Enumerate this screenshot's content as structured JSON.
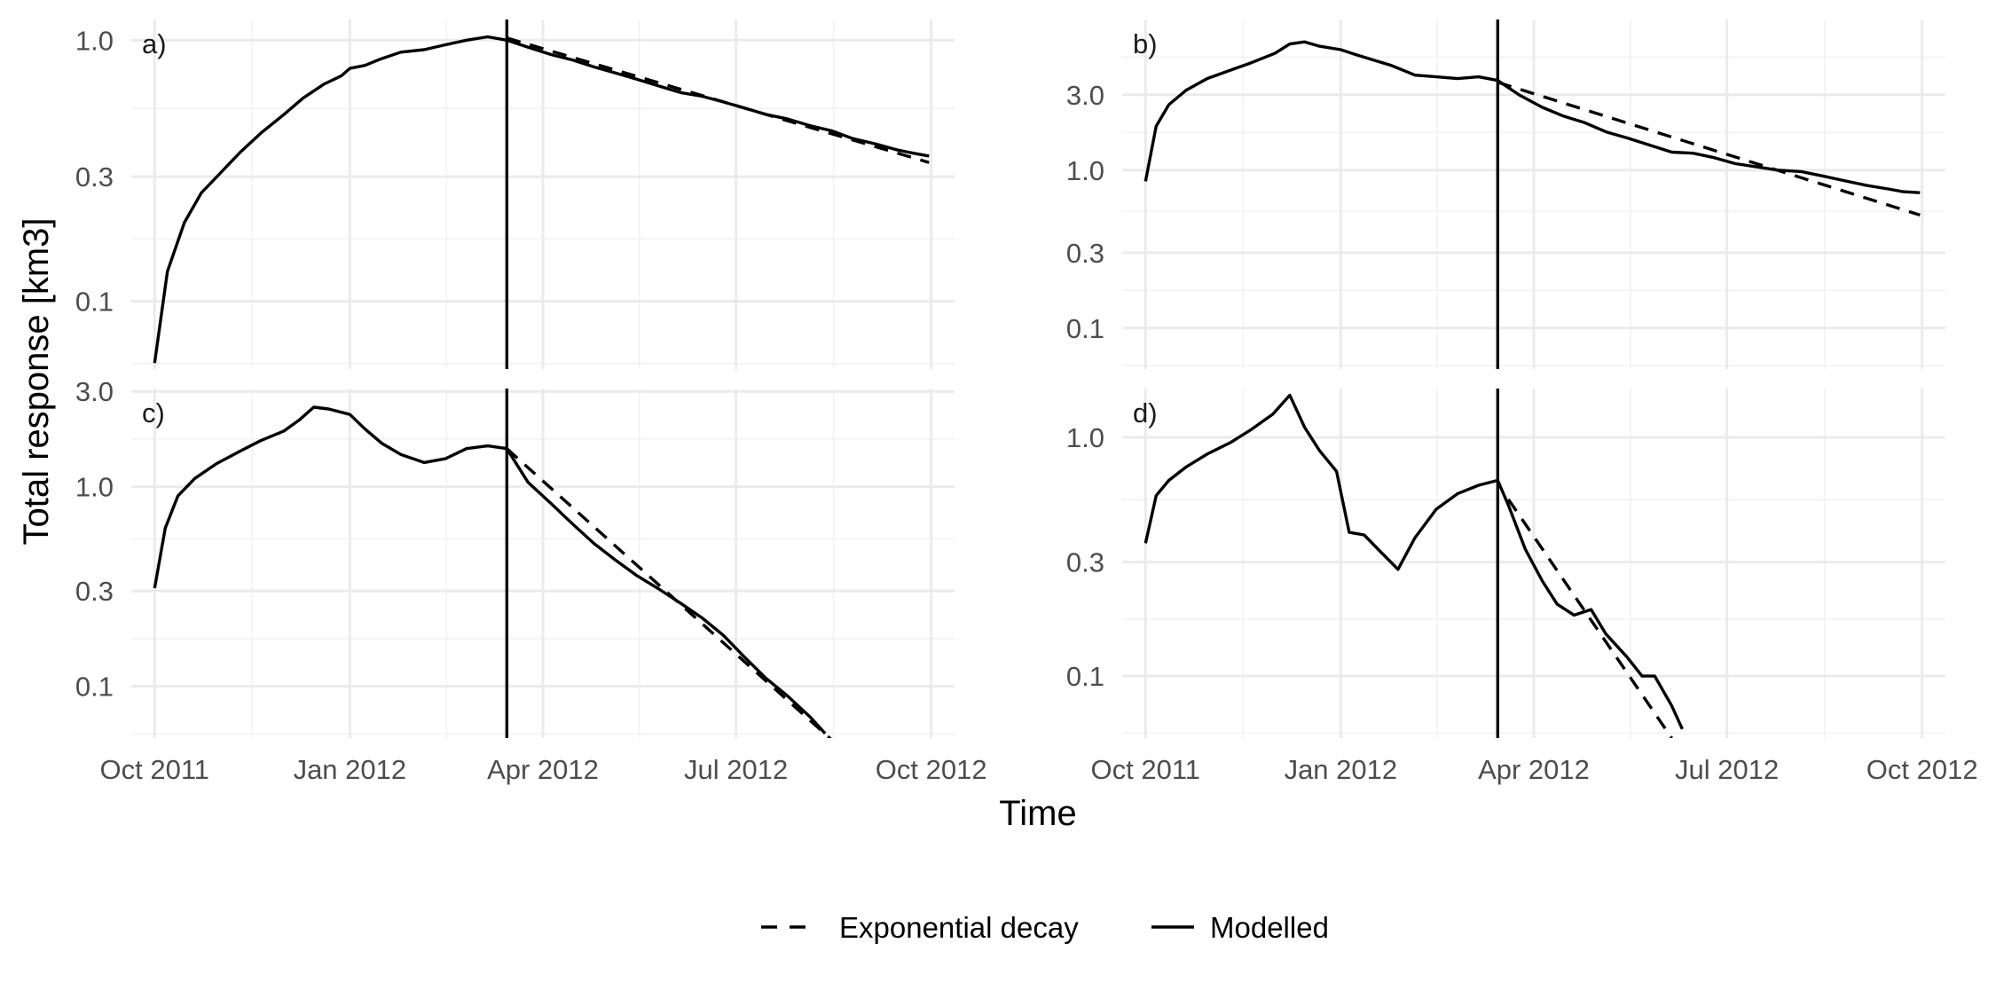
{
  "chart_data": {
    "type": "line",
    "xlabel": "Time",
    "ylabel": "Total response [km3]",
    "x_tick_labels": [
      "Oct 2011",
      "Jan 2012",
      "Apr 2012",
      "Jul 2012",
      "Oct 2012"
    ],
    "x_ticks": [
      "2011-10-01",
      "2012-01-01",
      "2012-04-01",
      "2012-07-01",
      "2012-10-01"
    ],
    "xlim": [
      "2011-09-20",
      "2012-10-12"
    ],
    "y_scale": "log",
    "grid": true,
    "legend_position": "bottom",
    "legend": [
      {
        "key": "exp",
        "label": "Exponential decay",
        "style": "dashed"
      },
      {
        "key": "mod",
        "label": "Modelled",
        "style": "solid"
      }
    ],
    "panels": [
      {
        "tag": "a)",
        "ylim": [
          0.055,
          1.2
        ],
        "y_ticks": [
          0.1,
          0.3,
          1.0
        ],
        "y_tick_labels": [
          "0.1",
          "0.3",
          "1.0"
        ],
        "vline": "2012-03-15",
        "series": {
          "mod": [
            [
              "2011-10-01",
              0.058
            ],
            [
              "2011-10-07",
              0.13
            ],
            [
              "2011-10-15",
              0.2
            ],
            [
              "2011-10-23",
              0.26
            ],
            [
              "2011-11-01",
              0.31
            ],
            [
              "2011-11-10",
              0.37
            ],
            [
              "2011-11-20",
              0.44
            ],
            [
              "2011-12-01",
              0.52
            ],
            [
              "2011-12-10",
              0.6
            ],
            [
              "2011-12-20",
              0.68
            ],
            [
              "2011-12-28",
              0.73
            ],
            [
              "2012-01-01",
              0.78
            ],
            [
              "2012-01-08",
              0.8
            ],
            [
              "2012-01-16",
              0.85
            ],
            [
              "2012-01-25",
              0.9
            ],
            [
              "2012-02-05",
              0.92
            ],
            [
              "2012-02-15",
              0.96
            ],
            [
              "2012-02-25",
              1.0
            ],
            [
              "2012-03-06",
              1.03
            ],
            [
              "2012-03-15",
              1.0
            ],
            [
              "2012-03-25",
              0.94
            ],
            [
              "2012-04-05",
              0.88
            ],
            [
              "2012-04-15",
              0.84
            ],
            [
              "2012-04-25",
              0.79
            ],
            [
              "2012-05-05",
              0.75
            ],
            [
              "2012-05-15",
              0.71
            ],
            [
              "2012-05-25",
              0.67
            ],
            [
              "2012-06-05",
              0.63
            ],
            [
              "2012-06-15",
              0.61
            ],
            [
              "2012-06-25",
              0.58
            ],
            [
              "2012-07-05",
              0.55
            ],
            [
              "2012-07-15",
              0.52
            ],
            [
              "2012-07-25",
              0.5
            ],
            [
              "2012-08-05",
              0.47
            ],
            [
              "2012-08-15",
              0.45
            ],
            [
              "2012-08-25",
              0.42
            ],
            [
              "2012-09-05",
              0.4
            ],
            [
              "2012-09-15",
              0.38
            ],
            [
              "2012-09-22",
              0.37
            ],
            [
              "2012-09-30",
              0.36
            ]
          ],
          "exp": [
            [
              "2012-03-15",
              1.02
            ],
            [
              "2012-09-30",
              0.34
            ]
          ]
        }
      },
      {
        "tag": "b)",
        "ylim": [
          0.055,
          9.0
        ],
        "y_ticks": [
          0.1,
          0.3,
          1.0,
          3.0
        ],
        "y_tick_labels": [
          "0.1",
          "0.3",
          "1.0",
          "3.0"
        ],
        "vline": "2012-03-15",
        "series": {
          "mod": [
            [
              "2011-10-01",
              0.85
            ],
            [
              "2011-10-06",
              1.9
            ],
            [
              "2011-10-12",
              2.6
            ],
            [
              "2011-10-20",
              3.2
            ],
            [
              "2011-10-30",
              3.8
            ],
            [
              "2011-11-10",
              4.3
            ],
            [
              "2011-11-20",
              4.8
            ],
            [
              "2011-12-01",
              5.5
            ],
            [
              "2011-12-08",
              6.3
            ],
            [
              "2011-12-15",
              6.5
            ],
            [
              "2011-12-22",
              6.1
            ],
            [
              "2012-01-01",
              5.8
            ],
            [
              "2012-01-08",
              5.4
            ],
            [
              "2012-01-16",
              5.0
            ],
            [
              "2012-01-25",
              4.6
            ],
            [
              "2012-02-05",
              4.0
            ],
            [
              "2012-02-15",
              3.9
            ],
            [
              "2012-02-25",
              3.8
            ],
            [
              "2012-03-06",
              3.9
            ],
            [
              "2012-03-15",
              3.7
            ],
            [
              "2012-03-25",
              3.0
            ],
            [
              "2012-04-05",
              2.5
            ],
            [
              "2012-04-15",
              2.2
            ],
            [
              "2012-04-25",
              2.0
            ],
            [
              "2012-05-05",
              1.75
            ],
            [
              "2012-05-15",
              1.6
            ],
            [
              "2012-05-25",
              1.45
            ],
            [
              "2012-06-05",
              1.3
            ],
            [
              "2012-06-15",
              1.28
            ],
            [
              "2012-06-25",
              1.2
            ],
            [
              "2012-07-05",
              1.1
            ],
            [
              "2012-07-15",
              1.05
            ],
            [
              "2012-07-25",
              1.0
            ],
            [
              "2012-08-05",
              0.98
            ],
            [
              "2012-08-15",
              0.92
            ],
            [
              "2012-08-25",
              0.86
            ],
            [
              "2012-09-05",
              0.8
            ],
            [
              "2012-09-15",
              0.76
            ],
            [
              "2012-09-22",
              0.73
            ],
            [
              "2012-09-30",
              0.72
            ]
          ],
          "exp": [
            [
              "2012-03-15",
              3.6
            ],
            [
              "2012-09-30",
              0.52
            ]
          ]
        }
      },
      {
        "tag": "c)",
        "ylim": [
          0.055,
          3.1
        ],
        "y_ticks": [
          0.1,
          0.3,
          1.0,
          3.0
        ],
        "y_tick_labels": [
          "0.1",
          "0.3",
          "1.0",
          "3.0"
        ],
        "vline": "2012-03-15",
        "series": {
          "mod": [
            [
              "2011-10-01",
              0.31
            ],
            [
              "2011-10-06",
              0.62
            ],
            [
              "2011-10-12",
              0.9
            ],
            [
              "2011-10-20",
              1.1
            ],
            [
              "2011-10-30",
              1.3
            ],
            [
              "2011-11-10",
              1.5
            ],
            [
              "2011-11-20",
              1.7
            ],
            [
              "2011-12-01",
              1.9
            ],
            [
              "2011-12-08",
              2.15
            ],
            [
              "2011-12-15",
              2.5
            ],
            [
              "2011-12-22",
              2.45
            ],
            [
              "2012-01-01",
              2.3
            ],
            [
              "2012-01-08",
              1.95
            ],
            [
              "2012-01-16",
              1.65
            ],
            [
              "2012-01-25",
              1.45
            ],
            [
              "2012-02-05",
              1.32
            ],
            [
              "2012-02-15",
              1.38
            ],
            [
              "2012-02-25",
              1.55
            ],
            [
              "2012-03-06",
              1.6
            ],
            [
              "2012-03-15",
              1.55
            ],
            [
              "2012-03-25",
              1.05
            ],
            [
              "2012-04-05",
              0.82
            ],
            [
              "2012-04-15",
              0.65
            ],
            [
              "2012-04-25",
              0.52
            ],
            [
              "2012-05-05",
              0.43
            ],
            [
              "2012-05-15",
              0.36
            ],
            [
              "2012-05-25",
              0.31
            ],
            [
              "2012-06-05",
              0.26
            ],
            [
              "2012-06-15",
              0.22
            ],
            [
              "2012-06-25",
              0.18
            ],
            [
              "2012-07-05",
              0.14
            ],
            [
              "2012-07-15",
              0.11
            ],
            [
              "2012-07-25",
              0.09
            ],
            [
              "2012-08-05",
              0.07
            ],
            [
              "2012-08-12",
              0.058
            ]
          ],
          "exp": [
            [
              "2012-03-15",
              1.55
            ],
            [
              "2012-08-15",
              0.054
            ]
          ]
        }
      },
      {
        "tag": "d)",
        "ylim": [
          0.055,
          1.6
        ],
        "y_ticks": [
          0.1,
          0.3,
          1.0
        ],
        "y_tick_labels": [
          "0.1",
          "0.3",
          "1.0"
        ],
        "vline": "2012-03-15",
        "series": {
          "mod": [
            [
              "2011-10-01",
              0.36
            ],
            [
              "2011-10-06",
              0.57
            ],
            [
              "2011-10-12",
              0.66
            ],
            [
              "2011-10-20",
              0.75
            ],
            [
              "2011-10-30",
              0.85
            ],
            [
              "2011-11-10",
              0.95
            ],
            [
              "2011-11-20",
              1.08
            ],
            [
              "2011-11-30",
              1.25
            ],
            [
              "2011-12-08",
              1.5
            ],
            [
              "2011-12-15",
              1.1
            ],
            [
              "2011-12-22",
              0.88
            ],
            [
              "2011-12-30",
              0.72
            ],
            [
              "2012-01-05",
              0.4
            ],
            [
              "2012-01-12",
              0.39
            ],
            [
              "2012-01-20",
              0.33
            ],
            [
              "2012-01-28",
              0.28
            ],
            [
              "2012-02-05",
              0.38
            ],
            [
              "2012-02-15",
              0.5
            ],
            [
              "2012-02-25",
              0.58
            ],
            [
              "2012-03-06",
              0.63
            ],
            [
              "2012-03-15",
              0.66
            ],
            [
              "2012-03-20",
              0.52
            ],
            [
              "2012-03-28",
              0.34
            ],
            [
              "2012-04-05",
              0.25
            ],
            [
              "2012-04-12",
              0.2
            ],
            [
              "2012-04-20",
              0.18
            ],
            [
              "2012-04-28",
              0.19
            ],
            [
              "2012-05-05",
              0.15
            ],
            [
              "2012-05-15",
              0.12
            ],
            [
              "2012-05-22",
              0.1
            ],
            [
              "2012-05-28",
              0.1
            ],
            [
              "2012-06-05",
              0.075
            ],
            [
              "2012-06-10",
              0.06
            ]
          ],
          "exp": [
            [
              "2012-03-20",
              0.55
            ],
            [
              "2012-06-05",
              0.055
            ]
          ]
        }
      }
    ]
  }
}
